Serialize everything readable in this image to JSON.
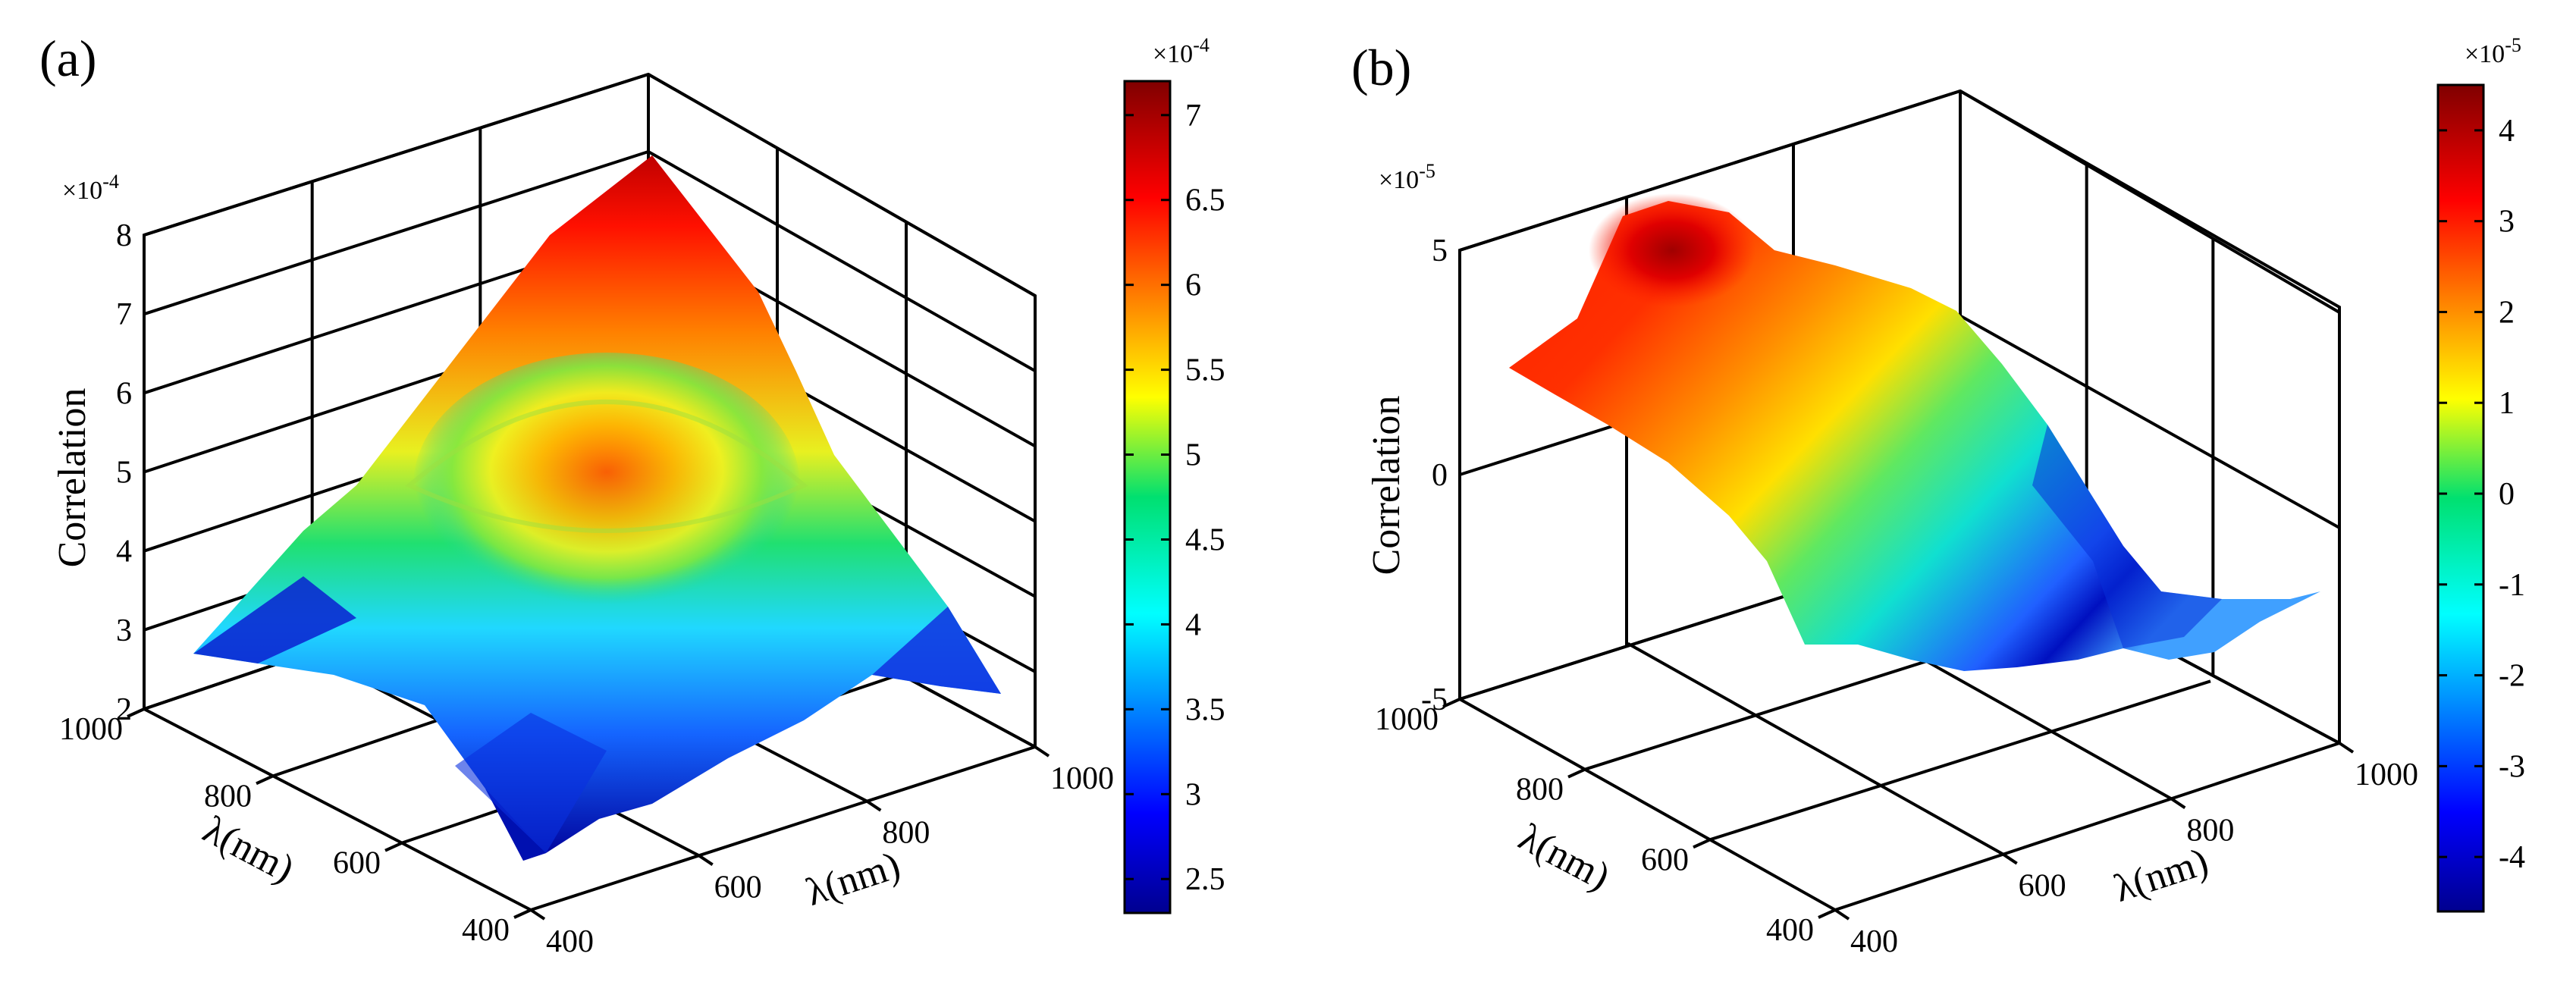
{
  "chart_data": [
    {
      "type": "surface3d",
      "panel_label": "(a)",
      "title": "",
      "xlabel": "λ(nm)",
      "ylabel": "λ(nm)",
      "zlabel": "Correlation",
      "x_ticks": [
        "400",
        "600",
        "800",
        "1000"
      ],
      "y_ticks": [
        "400",
        "600",
        "800",
        "1000"
      ],
      "z_ticks": [
        "2",
        "3",
        "4",
        "5",
        "6",
        "7",
        "8"
      ],
      "z_multiplier": "×10",
      "z_multiplier_exp": "-4",
      "zlim": [
        2,
        8
      ],
      "colorbar": {
        "multiplier": "×10",
        "multiplier_exp": "-4",
        "ticks": [
          "2.5",
          "3",
          "3.5",
          "4",
          "4.5",
          "5",
          "5.5",
          "6",
          "6.5",
          "7"
        ],
        "range": [
          2.3,
          7.2
        ]
      },
      "surface_description_values": {
        "peak_value": 7.2,
        "center_local_max": 5.9,
        "corner_min": 2.4
      }
    },
    {
      "type": "surface3d",
      "panel_label": "(b)",
      "title": "",
      "xlabel": "λ(nm)",
      "ylabel": "λ(nm)",
      "zlabel": "Correlation",
      "x_ticks": [
        "400",
        "600",
        "800",
        "1000"
      ],
      "y_ticks": [
        "400",
        "600",
        "800",
        "1000"
      ],
      "z_ticks": [
        "-5",
        "0",
        "5"
      ],
      "z_multiplier": "×10",
      "z_multiplier_exp": "-5",
      "zlim": [
        -5,
        5
      ],
      "colorbar": {
        "multiplier": "×10",
        "multiplier_exp": "-5",
        "ticks": [
          "-4",
          "-3",
          "-2",
          "-1",
          "0",
          "1",
          "2",
          "3",
          "4"
        ],
        "range": [
          -4.6,
          4.5
        ]
      },
      "surface_description_values": {
        "peak_value": 4.5,
        "trough_value": -4.5
      }
    }
  ]
}
